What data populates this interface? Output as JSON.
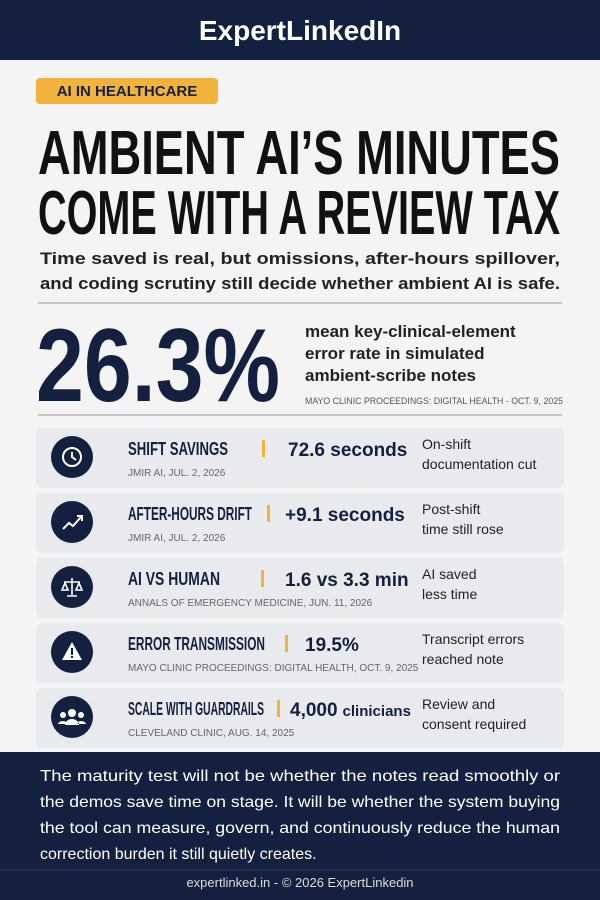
{
  "header": {
    "brand": "ExpertLinkedIn"
  },
  "tag": "AI IN HEALTHCARE",
  "headline": [
    "AMBIENT AI’S MINUTES",
    "COME WITH A REVIEW TAX"
  ],
  "subtitle": [
    "Time saved is real, but omissions, after-hours spillover,",
    "and coding scrutiny still decide whether ambient AI is safe."
  ],
  "key_stat": {
    "value": "26.3%",
    "description": [
      "mean key-clinical-element",
      "error rate in simulated",
      "ambient-scribe notes"
    ],
    "source": "MAYO CLINIC PROCEEDINGS: DIGITAL HEALTH - OCT. 9, 2025"
  },
  "rows": [
    {
      "title": "SHIFT SAVINGS",
      "value": "72.6 seconds",
      "source": "JMIR AI, JUL. 2, 2026",
      "description": [
        "On-shift",
        "documentation cut"
      ]
    },
    {
      "title": "AFTER-HOURS DRIFT",
      "value": "+9.1 seconds",
      "source": "JMIR AI, JUL. 2, 2026",
      "description": [
        "Post-shift",
        "time still rose"
      ]
    },
    {
      "title": "AI VS HUMAN",
      "value": "1.6 vs 3.3 min",
      "source": "ANNALS OF EMERGENCY MEDICINE, JUN. 11, 2026",
      "description": [
        "AI saved",
        "less time"
      ]
    },
    {
      "title": "ERROR TRANSMISSION",
      "value": "19.5%",
      "source": "MAYO CLINIC PROCEEDINGS: DIGITAL HEALTH, OCT. 9, 2025",
      "description": [
        "Transcript errors",
        "reached note"
      ]
    },
    {
      "title": "SCALE WITH GUARDRAILS",
      "value": "4,000",
      "unit": "clinicians",
      "source": "CLEVELAND CLINIC, AUG. 14, 2025",
      "description": [
        "Review and",
        "consent required"
      ]
    }
  ],
  "conclusion": [
    "The maturity test will not be whether the notes read smoothly or",
    "the demos save time on stage. It will be whether the system buying",
    "the tool can measure, govern, and continuously reduce the human",
    "correction burden it still quietly creates."
  ],
  "footer": "expertlinked.in - © 2026 ExpertLinkedin"
}
